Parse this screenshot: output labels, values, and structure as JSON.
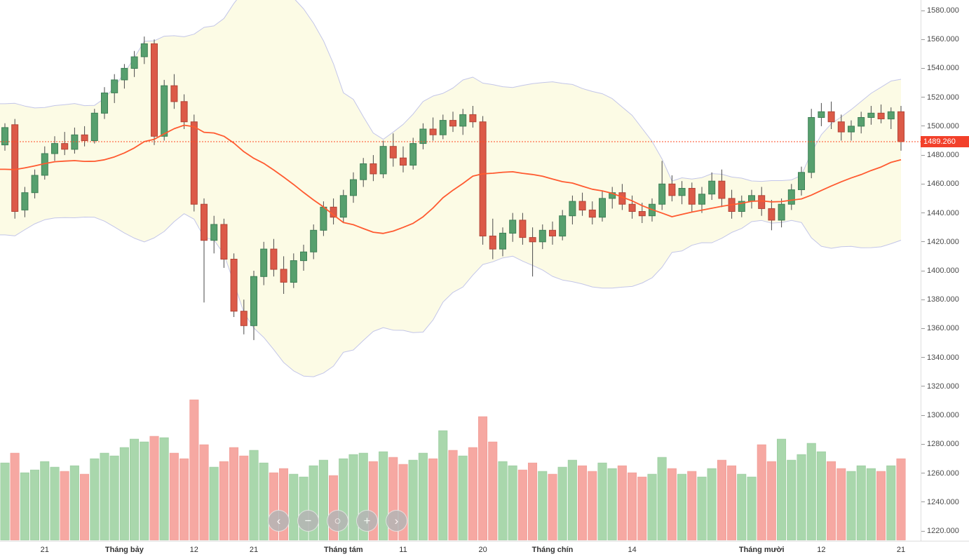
{
  "colors": {
    "background": "#ffffff",
    "candle_up": "#57a06e",
    "candle_up_border": "#3d7f55",
    "candle_down": "#dc5a48",
    "candle_down_border": "#b24437",
    "wick": "#4a4a4a",
    "vol_up": "#a9d7ac",
    "vol_up_border": "#8fc594",
    "vol_down": "#f6a8a2",
    "vol_down_border": "#ee938c",
    "band_fill": "#fcfae0",
    "band_line": "#c3c6e8",
    "ma_line": "#ff5a30",
    "price_line": "#ff4a22",
    "price_label_bg": "#f2402a",
    "price_label_text": "#ffffff",
    "axis_text": "#4a4a4a",
    "time_text": "#333333",
    "axis_line": "#dddddd",
    "nav_button_bg": "#b5b5b5",
    "nav_button_icon": "#ffffff"
  },
  "chart_data": {
    "type": "candlestick",
    "title": "",
    "price_axis": {
      "side": "right",
      "min": 1220,
      "max": 1580,
      "step": 20,
      "tick_labels": [
        "1580.000",
        "1560.000",
        "1540.000",
        "1520.000",
        "1500.000",
        "1480.000",
        "1460.000",
        "1440.000",
        "1420.000",
        "1400.000",
        "1380.000",
        "1360.000",
        "1340.000",
        "1320.000",
        "1300.000",
        "1280.000",
        "1260.000",
        "1240.000",
        "1220.000"
      ]
    },
    "time_axis": {
      "ticks": [
        {
          "index": 4,
          "label": "21",
          "bold": false
        },
        {
          "index": 12,
          "label": "Tháng bảy",
          "bold": true
        },
        {
          "index": 19,
          "label": "12",
          "bold": false
        },
        {
          "index": 25,
          "label": "21",
          "bold": false
        },
        {
          "index": 34,
          "label": "Tháng tám",
          "bold": true
        },
        {
          "index": 40,
          "label": "11",
          "bold": false
        },
        {
          "index": 48,
          "label": "20",
          "bold": false
        },
        {
          "index": 55,
          "label": "Tháng chín",
          "bold": true
        },
        {
          "index": 63,
          "label": "14",
          "bold": false
        },
        {
          "index": 76,
          "label": "Tháng mười",
          "bold": true
        },
        {
          "index": 82,
          "label": "12",
          "bold": false
        },
        {
          "index": 90,
          "label": "21",
          "bold": false
        }
      ]
    },
    "last_price": {
      "value": 1489.26,
      "label": "1489.260"
    },
    "columns": [
      "open",
      "high",
      "low",
      "close",
      "volume_rel"
    ],
    "candles": [
      [
        1487,
        1502,
        1483,
        1499,
        55
      ],
      [
        1501,
        1505,
        1436,
        1441,
        62
      ],
      [
        1442,
        1458,
        1437,
        1454,
        48
      ],
      [
        1454,
        1470,
        1450,
        1466,
        50
      ],
      [
        1466,
        1486,
        1463,
        1481,
        56
      ],
      [
        1481,
        1493,
        1476,
        1488,
        52
      ],
      [
        1488,
        1496,
        1480,
        1484,
        49
      ],
      [
        1484,
        1499,
        1481,
        1494,
        53
      ],
      [
        1494,
        1500,
        1486,
        1490,
        47
      ],
      [
        1490,
        1512,
        1488,
        1509,
        58
      ],
      [
        1509,
        1527,
        1505,
        1523,
        62
      ],
      [
        1523,
        1536,
        1516,
        1532,
        60
      ],
      [
        1532,
        1543,
        1526,
        1540,
        66
      ],
      [
        1540,
        1552,
        1534,
        1548,
        72
      ],
      [
        1548,
        1562,
        1543,
        1557,
        70
      ],
      [
        1557,
        1560,
        1487,
        1493,
        74
      ],
      [
        1493,
        1532,
        1490,
        1528,
        73
      ],
      [
        1528,
        1536,
        1512,
        1517,
        62
      ],
      [
        1517,
        1522,
        1498,
        1503,
        58
      ],
      [
        1503,
        1508,
        1441,
        1446,
        100
      ],
      [
        1446,
        1450,
        1378,
        1421,
        68
      ],
      [
        1421,
        1438,
        1412,
        1432,
        52
      ],
      [
        1432,
        1436,
        1402,
        1408,
        56
      ],
      [
        1408,
        1412,
        1368,
        1372,
        66
      ],
      [
        1372,
        1380,
        1356,
        1362,
        60
      ],
      [
        1362,
        1400,
        1352,
        1396,
        64
      ],
      [
        1396,
        1420,
        1390,
        1415,
        55
      ],
      [
        1415,
        1422,
        1396,
        1401,
        48
      ],
      [
        1401,
        1410,
        1384,
        1392,
        51
      ],
      [
        1392,
        1412,
        1388,
        1407,
        47
      ],
      [
        1407,
        1418,
        1400,
        1413,
        45
      ],
      [
        1413,
        1432,
        1408,
        1428,
        53
      ],
      [
        1428,
        1448,
        1424,
        1444,
        57
      ],
      [
        1444,
        1450,
        1432,
        1437,
        46
      ],
      [
        1437,
        1456,
        1433,
        1452,
        58
      ],
      [
        1452,
        1468,
        1447,
        1463,
        61
      ],
      [
        1463,
        1478,
        1458,
        1474,
        62
      ],
      [
        1474,
        1480,
        1462,
        1467,
        56
      ],
      [
        1467,
        1490,
        1464,
        1486,
        63
      ],
      [
        1486,
        1495,
        1472,
        1478,
        59
      ],
      [
        1478,
        1486,
        1468,
        1473,
        54
      ],
      [
        1473,
        1492,
        1470,
        1488,
        57
      ],
      [
        1488,
        1502,
        1484,
        1498,
        62
      ],
      [
        1498,
        1506,
        1490,
        1494,
        58
      ],
      [
        1494,
        1508,
        1491,
        1504,
        78
      ],
      [
        1504,
        1510,
        1496,
        1500,
        64
      ],
      [
        1500,
        1512,
        1494,
        1508,
        60
      ],
      [
        1508,
        1514,
        1499,
        1503,
        66
      ],
      [
        1503,
        1507,
        1418,
        1424,
        88
      ],
      [
        1424,
        1436,
        1408,
        1415,
        70
      ],
      [
        1415,
        1430,
        1410,
        1426,
        56
      ],
      [
        1426,
        1440,
        1420,
        1435,
        53
      ],
      [
        1435,
        1440,
        1418,
        1423,
        50
      ],
      [
        1423,
        1430,
        1396,
        1420,
        55
      ],
      [
        1420,
        1432,
        1415,
        1428,
        49
      ],
      [
        1428,
        1434,
        1418,
        1424,
        47
      ],
      [
        1424,
        1442,
        1421,
        1438,
        52
      ],
      [
        1438,
        1452,
        1432,
        1448,
        57
      ],
      [
        1448,
        1454,
        1438,
        1442,
        53
      ],
      [
        1442,
        1448,
        1432,
        1437,
        49
      ],
      [
        1437,
        1455,
        1434,
        1450,
        55
      ],
      [
        1450,
        1458,
        1443,
        1454,
        51
      ],
      [
        1454,
        1460,
        1442,
        1446,
        53
      ],
      [
        1446,
        1452,
        1436,
        1441,
        48
      ],
      [
        1441,
        1447,
        1433,
        1438,
        45
      ],
      [
        1438,
        1450,
        1434,
        1446,
        47
      ],
      [
        1446,
        1476,
        1442,
        1460,
        59
      ],
      [
        1460,
        1466,
        1448,
        1452,
        51
      ],
      [
        1452,
        1462,
        1446,
        1457,
        47
      ],
      [
        1457,
        1461,
        1441,
        1446,
        49
      ],
      [
        1446,
        1458,
        1440,
        1453,
        45
      ],
      [
        1453,
        1468,
        1449,
        1462,
        51
      ],
      [
        1462,
        1470,
        1444,
        1450,
        57
      ],
      [
        1450,
        1456,
        1436,
        1441,
        53
      ],
      [
        1441,
        1452,
        1437,
        1448,
        47
      ],
      [
        1448,
        1456,
        1443,
        1452,
        45
      ],
      [
        1452,
        1458,
        1438,
        1443,
        68
      ],
      [
        1443,
        1449,
        1428,
        1435,
        56
      ],
      [
        1435,
        1450,
        1430,
        1446,
        72
      ],
      [
        1446,
        1460,
        1442,
        1456,
        57
      ],
      [
        1456,
        1472,
        1452,
        1468,
        61
      ],
      [
        1468,
        1512,
        1464,
        1506,
        69
      ],
      [
        1506,
        1516,
        1500,
        1510,
        63
      ],
      [
        1510,
        1517,
        1498,
        1503,
        56
      ],
      [
        1503,
        1508,
        1490,
        1496,
        51
      ],
      [
        1496,
        1504,
        1490,
        1500,
        49
      ],
      [
        1500,
        1510,
        1495,
        1506,
        53
      ],
      [
        1506,
        1514,
        1501,
        1509,
        51
      ],
      [
        1509,
        1515,
        1502,
        1505,
        49
      ],
      [
        1505,
        1513,
        1498,
        1510,
        53
      ],
      [
        1510,
        1514,
        1483,
        1489.26,
        58
      ]
    ],
    "indicators": {
      "bollinger": {
        "period": 20,
        "stddev": 2
      },
      "ma": {
        "period": 20
      },
      "offscreen_history_closes": [
        1445,
        1430,
        1438,
        1450,
        1462,
        1475,
        1488,
        1500,
        1508,
        1502,
        1492,
        1486,
        1478,
        1470,
        1461,
        1452,
        1446,
        1455,
        1466
      ]
    }
  },
  "nav": {
    "buttons": [
      {
        "name": "pan-left-button",
        "glyph": "‹"
      },
      {
        "name": "zoom-out-button",
        "glyph": "−"
      },
      {
        "name": "reset-zoom-button",
        "glyph": "○"
      },
      {
        "name": "zoom-in-button",
        "glyph": "+"
      },
      {
        "name": "pan-right-button",
        "glyph": "›"
      }
    ]
  }
}
